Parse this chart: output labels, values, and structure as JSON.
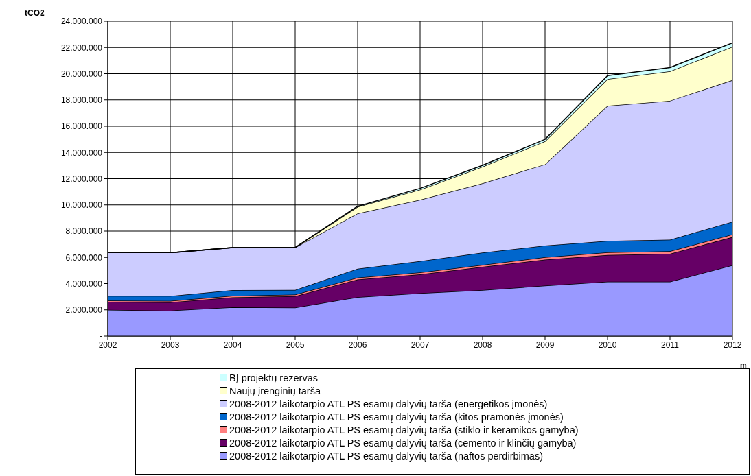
{
  "chart_data": {
    "type": "area",
    "stacked": true,
    "ylabel": "tCO2",
    "xlabel": "m",
    "x": [
      2002,
      2003,
      2004,
      2005,
      2006,
      2007,
      2008,
      2009,
      2010,
      2011,
      2012
    ],
    "xlim": [
      2002,
      2012
    ],
    "xticks": [
      2002,
      2003,
      2004,
      2005,
      2006,
      2007,
      2008,
      2009,
      2010,
      2011,
      2012
    ],
    "ylim": [
      0,
      24000000
    ],
    "yticks": [
      {
        "value": 0,
        "label": "-"
      },
      {
        "value": 2000000,
        "label": "2.000.000"
      },
      {
        "value": 4000000,
        "label": "4.000.000"
      },
      {
        "value": 6000000,
        "label": "6.000.000"
      },
      {
        "value": 8000000,
        "label": "8.000.000"
      },
      {
        "value": 10000000,
        "label": "10.000.000"
      },
      {
        "value": 12000000,
        "label": "12.000.000"
      },
      {
        "value": 14000000,
        "label": "14.000.000"
      },
      {
        "value": 16000000,
        "label": "16.000.000"
      },
      {
        "value": 18000000,
        "label": "18.000.000"
      },
      {
        "value": 20000000,
        "label": "20.000.000"
      },
      {
        "value": 22000000,
        "label": "22.000.000"
      },
      {
        "value": 24000000,
        "label": "24.000.000"
      }
    ],
    "grid": true,
    "legend": "bottom",
    "series": [
      {
        "name": "2008-2012 laikotarpio ATL PS esamų dalyvių tarša (naftos perdirbimas)",
        "color": "#9999ff",
        "values": [
          2000000,
          1940000,
          2190000,
          2170000,
          2970000,
          3270000,
          3500000,
          3840000,
          4140000,
          4140000,
          5400000
        ]
      },
      {
        "name": "2008-2012 laikotarpio ATL PS esamų dalyvių tarša (cemento ir klinčių gamyba)",
        "color": "#660066",
        "values": [
          600000,
          640000,
          760000,
          870000,
          1340000,
          1430000,
          1780000,
          1990000,
          2040000,
          2130000,
          2150000
        ]
      },
      {
        "name": "2008-2012 laikotarpio ATL PS esamų dalyvių tarša (stiklo ir keramikos gamyba)",
        "color": "#ff8080",
        "values": [
          100000,
          100000,
          120000,
          120000,
          150000,
          150000,
          150000,
          180000,
          200000,
          200000,
          200000
        ]
      },
      {
        "name": "2008-2012 laikotarpio ATL PS esamų dalyvių tarša (kitos pramonės įmonės)",
        "color": "#0066cc",
        "values": [
          360000,
          380000,
          430000,
          350000,
          680000,
          860000,
          930000,
          890000,
          870000,
          880000,
          970000
        ]
      },
      {
        "name": "2008-2012 laikotarpio ATL PS esamų dalyvių tarša (energetikos įmonės)",
        "color": "#ccccff",
        "values": [
          3320000,
          3300000,
          3240000,
          3240000,
          4210000,
          4680000,
          5290000,
          6190000,
          10310000,
          10590000,
          10790000
        ]
      },
      {
        "name": "Naujų įrenginių tarša",
        "color": "#ffffcc",
        "values": [
          0,
          0,
          0,
          0,
          500000,
          770000,
          1260000,
          1760000,
          2040000,
          2240000,
          2540000
        ]
      },
      {
        "name": "BĮ projektų rezervas",
        "color": "#ccffff",
        "values": [
          0,
          0,
          0,
          0,
          50000,
          100000,
          110000,
          150000,
          260000,
          290000,
          310000
        ]
      }
    ]
  }
}
